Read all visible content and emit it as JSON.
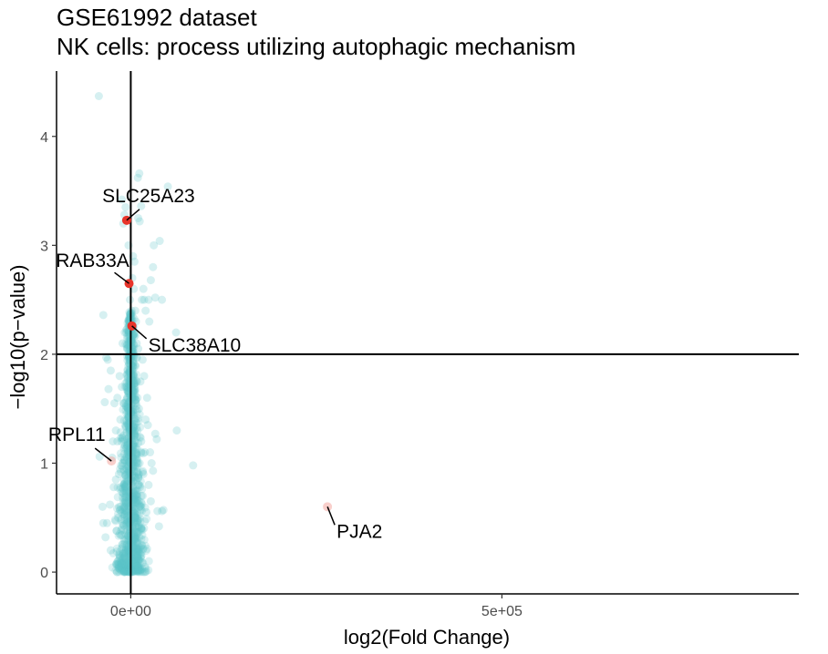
{
  "chart_data": {
    "type": "scatter",
    "title": "GSE61992 dataset",
    "subtitle": "NK cells: process utilizing autophagic mechanism",
    "xlabel": "log2(Fold Change)",
    "ylabel": "−log10(p−value)",
    "xlim": [
      -100000,
      900000
    ],
    "ylim": [
      -0.2,
      4.6
    ],
    "x_ticks": [
      {
        "value": 0,
        "label": "0e+00"
      },
      {
        "value": 500000,
        "label": "5e+05"
      }
    ],
    "y_ticks": [
      {
        "value": 0,
        "label": "0"
      },
      {
        "value": 1,
        "label": "1"
      },
      {
        "value": 2,
        "label": "2"
      },
      {
        "value": 3,
        "label": "3"
      },
      {
        "value": 4,
        "label": "4"
      }
    ],
    "hline": 2,
    "vline": 0,
    "grid": false,
    "colors": {
      "background_points": "#5bc3c8",
      "highlight_significant": "#e8342a",
      "highlight_nonsignificant": "#f4a8a0"
    },
    "labeled_genes": [
      {
        "name": "SLC25A23",
        "x": -5500,
        "y": 3.23,
        "significant": true
      },
      {
        "name": "RAB33A",
        "x": -2300,
        "y": 2.65,
        "significant": true
      },
      {
        "name": "SLC38A10",
        "x": 1500,
        "y": 2.26,
        "significant": true
      },
      {
        "name": "RPL11",
        "x": -26000,
        "y": 1.02,
        "significant": false
      },
      {
        "name": "PJA2",
        "x": 265000,
        "y": 0.6,
        "significant": false
      }
    ],
    "background_points": [
      [
        -43000,
        4.37
      ],
      [
        -12000,
        3.42
      ],
      [
        -8500,
        3.28
      ],
      [
        -7000,
        3.35
      ],
      [
        -10000,
        3.2
      ],
      [
        -3000,
        3.0
      ],
      [
        9500,
        3.62
      ],
      [
        11500,
        3.66
      ],
      [
        14000,
        3.36
      ],
      [
        10000,
        3.25
      ],
      [
        12000,
        3.22
      ],
      [
        50000,
        3.54
      ],
      [
        31000,
        3.0
      ],
      [
        39000,
        3.04
      ],
      [
        30000,
        2.8
      ],
      [
        27000,
        2.68
      ],
      [
        17000,
        2.6
      ],
      [
        24000,
        2.5
      ],
      [
        33000,
        2.52
      ],
      [
        42000,
        2.5
      ],
      [
        61000,
        2.2
      ],
      [
        15000,
        2.5
      ],
      [
        18000,
        2.5
      ],
      [
        20000,
        2.4
      ],
      [
        25000,
        2.3
      ],
      [
        3000,
        2.9
      ],
      [
        5000,
        2.85
      ],
      [
        2000,
        2.7
      ],
      [
        4000,
        2.6
      ],
      [
        6000,
        2.4
      ],
      [
        7000,
        2.3
      ],
      [
        -6000,
        2.2
      ],
      [
        -5000,
        2.05
      ],
      [
        -2000,
        2.3
      ],
      [
        -8000,
        2.2
      ],
      [
        -11000,
        2.1
      ],
      [
        -37000,
        2.36
      ],
      [
        -31000,
        1.95
      ],
      [
        -33000,
        1.97
      ],
      [
        -27000,
        1.85
      ],
      [
        -15000,
        1.8
      ],
      [
        -30000,
        1.68
      ],
      [
        -22000,
        1.55
      ],
      [
        -18000,
        1.6
      ],
      [
        -35000,
        1.56
      ],
      [
        -42000,
        1.06
      ],
      [
        -25000,
        1.05
      ],
      [
        -20000,
        0.85
      ],
      [
        -23000,
        0.78
      ],
      [
        -28000,
        0.62
      ],
      [
        -32000,
        0.45
      ],
      [
        -37000,
        0.45
      ],
      [
        -38000,
        0.6
      ],
      [
        -34000,
        0.32
      ],
      [
        -27000,
        0.2
      ],
      [
        -17000,
        0.5
      ],
      [
        -15000,
        0.35
      ],
      [
        -12000,
        0.4
      ],
      [
        -21000,
        0.48
      ],
      [
        -19000,
        0.38
      ],
      [
        62000,
        1.3
      ],
      [
        84000,
        0.98
      ],
      [
        33000,
        1.27
      ],
      [
        35000,
        1.22
      ],
      [
        30000,
        0.93
      ],
      [
        27000,
        0.65
      ],
      [
        36000,
        0.56
      ],
      [
        38000,
        0.42
      ],
      [
        42000,
        0.56
      ],
      [
        44000,
        0.57
      ],
      [
        24000,
        0.8
      ],
      [
        21000,
        0.55
      ],
      [
        22000,
        1.6
      ],
      [
        20000,
        1.4
      ],
      [
        19000,
        1.1
      ],
      [
        18000,
        1.8
      ],
      [
        16000,
        1.95
      ],
      [
        13000,
        1.75
      ],
      [
        11000,
        1.5
      ],
      [
        9000,
        1.3
      ],
      [
        8000,
        1.0
      ],
      [
        10000,
        0.8
      ],
      [
        12000,
        0.6
      ],
      [
        14000,
        0.4
      ],
      [
        15000,
        0.25
      ],
      [
        9000,
        0.15
      ],
      [
        7000,
        0.3
      ],
      [
        5000,
        0.5
      ],
      [
        3000,
        0.4
      ],
      [
        -3000,
        0.45
      ],
      [
        -5000,
        0.5
      ],
      [
        -7000,
        0.65
      ],
      [
        -9000,
        0.8
      ],
      [
        -11000,
        1.0
      ],
      [
        -13000,
        1.2
      ],
      [
        -14000,
        1.4
      ],
      [
        -10000,
        1.55
      ],
      [
        -6000,
        1.7
      ],
      [
        -4000,
        1.85
      ],
      [
        -3000,
        1.5
      ],
      [
        2000,
        1.6
      ],
      [
        4000,
        1.8
      ],
      [
        6000,
        1.9
      ],
      [
        7000,
        1.55
      ],
      [
        5000,
        1.25
      ],
      [
        3000,
        1.1
      ],
      [
        2000,
        0.9
      ],
      [
        -2000,
        0.95
      ],
      [
        -4000,
        1.1
      ],
      [
        -8000,
        0.3
      ],
      [
        -10000,
        0.18
      ],
      [
        -6000,
        0.1
      ],
      [
        4000,
        0.12
      ],
      [
        6000,
        0.08
      ],
      [
        -1000,
        1.3
      ],
      [
        1000,
        1.2
      ],
      [
        -1500,
        0.7
      ],
      [
        1500,
        0.6
      ],
      [
        -2500,
        0.3
      ],
      [
        2500,
        0.25
      ],
      [
        -16000,
        0.9
      ],
      [
        -18000,
        1.2
      ],
      [
        -20000,
        1.3
      ],
      [
        17000,
        0.9
      ],
      [
        26000,
        1.1
      ],
      [
        28000,
        1.0
      ],
      [
        -1000,
        2.5
      ],
      [
        1000,
        2.4
      ],
      [
        -500,
        1.9
      ],
      [
        500,
        1.75
      ],
      [
        8000,
        2.1
      ],
      [
        10000,
        2.05
      ],
      [
        -12000,
        1.7
      ],
      [
        14000,
        1.2
      ],
      [
        16000,
        0.7
      ],
      [
        -14000,
        0.6
      ],
      [
        -24000,
        1.2
      ],
      [
        23000,
        1.35
      ]
    ]
  }
}
